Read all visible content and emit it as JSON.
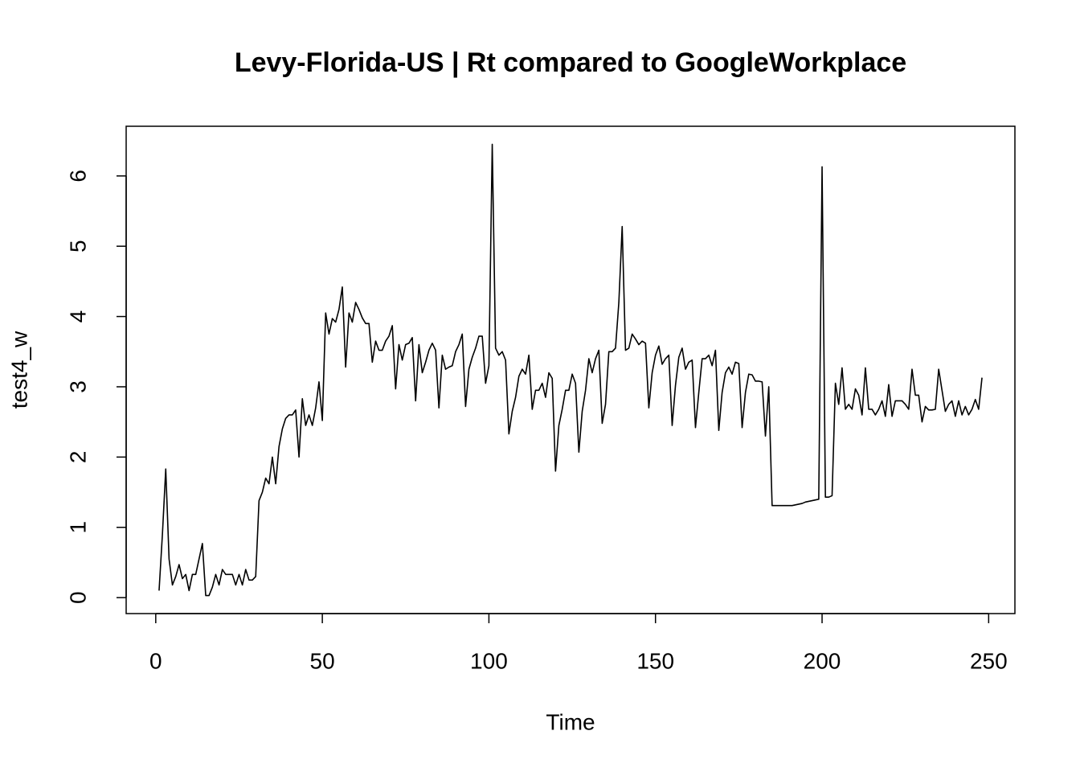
{
  "chart_data": {
    "type": "line",
    "title": "Levy-Florida-US | Rt compared to GoogleWorkplace",
    "x_label": "Time",
    "y_label": "test4_w",
    "color": "#000000",
    "x": [
      1,
      2,
      3,
      4,
      5,
      6,
      7,
      8,
      9,
      10,
      11,
      12,
      13,
      14,
      15,
      16,
      17,
      18,
      19,
      20,
      21,
      22,
      23,
      24,
      25,
      26,
      27,
      28,
      29,
      30,
      31,
      32,
      33,
      34,
      35,
      36,
      37,
      38,
      39,
      40,
      41,
      42,
      43,
      44,
      45,
      46,
      47,
      48,
      49,
      50,
      51,
      52,
      53,
      54,
      55,
      56,
      57,
      58,
      59,
      60,
      61,
      62,
      63,
      64,
      65,
      66,
      67,
      68,
      69,
      70,
      71,
      72,
      73,
      74,
      75,
      76,
      77,
      78,
      79,
      80,
      81,
      82,
      83,
      84,
      85,
      86,
      87,
      88,
      89,
      90,
      91,
      92,
      93,
      94,
      95,
      96,
      97,
      98,
      99,
      100,
      101,
      102,
      103,
      104,
      105,
      106,
      107,
      108,
      109,
      110,
      111,
      112,
      113,
      114,
      115,
      116,
      117,
      118,
      119,
      120,
      121,
      122,
      123,
      124,
      125,
      126,
      127,
      128,
      129,
      130,
      131,
      132,
      133,
      134,
      135,
      136,
      137,
      138,
      139,
      140,
      141,
      142,
      143,
      144,
      145,
      146,
      147,
      148,
      149,
      150,
      151,
      152,
      153,
      154,
      155,
      156,
      157,
      158,
      159,
      160,
      161,
      162,
      163,
      164,
      165,
      166,
      167,
      168,
      169,
      170,
      171,
      172,
      173,
      174,
      175,
      176,
      177,
      178,
      179,
      180,
      181,
      182,
      183,
      184,
      185,
      186,
      187,
      188,
      189,
      190,
      191,
      192,
      193,
      194,
      195,
      196,
      197,
      198,
      199,
      200,
      201,
      202,
      203,
      204,
      205,
      206,
      207,
      208,
      209,
      210,
      211,
      212,
      213,
      214,
      215,
      216,
      217,
      218,
      219,
      220,
      221,
      222,
      223,
      224,
      225,
      226,
      227,
      228,
      229,
      230,
      231,
      232,
      233,
      234,
      235,
      236,
      237,
      238,
      239,
      240,
      241,
      242,
      243,
      244,
      245,
      246,
      247,
      248
    ],
    "values": [
      0.1,
      0.9,
      1.83,
      0.55,
      0.18,
      0.3,
      0.47,
      0.27,
      0.33,
      0.1,
      0.33,
      0.33,
      0.55,
      0.77,
      0.03,
      0.03,
      0.15,
      0.33,
      0.18,
      0.4,
      0.33,
      0.33,
      0.33,
      0.18,
      0.33,
      0.18,
      0.4,
      0.25,
      0.25,
      0.3,
      1.38,
      1.5,
      1.7,
      1.62,
      2.0,
      1.62,
      2.15,
      2.4,
      2.55,
      2.6,
      2.6,
      2.67,
      2.0,
      2.83,
      2.45,
      2.6,
      2.45,
      2.7,
      3.07,
      2.52,
      4.05,
      3.75,
      3.97,
      3.92,
      4.1,
      4.42,
      3.28,
      4.05,
      3.92,
      4.2,
      4.1,
      3.98,
      3.9,
      3.9,
      3.35,
      3.65,
      3.52,
      3.52,
      3.65,
      3.72,
      3.87,
      2.97,
      3.6,
      3.38,
      3.6,
      3.62,
      3.7,
      2.8,
      3.6,
      3.2,
      3.35,
      3.52,
      3.62,
      3.52,
      2.7,
      3.45,
      3.25,
      3.28,
      3.3,
      3.5,
      3.6,
      3.75,
      2.72,
      3.25,
      3.42,
      3.55,
      3.72,
      3.72,
      3.05,
      3.3,
      6.45,
      3.55,
      3.45,
      3.5,
      3.38,
      2.33,
      2.65,
      2.85,
      3.15,
      3.25,
      3.18,
      3.45,
      2.68,
      2.95,
      2.95,
      3.05,
      2.85,
      3.2,
      3.12,
      1.8,
      2.45,
      2.68,
      2.95,
      2.95,
      3.18,
      3.05,
      2.07,
      2.65,
      2.95,
      3.4,
      3.2,
      3.4,
      3.52,
      2.48,
      2.75,
      3.5,
      3.5,
      3.55,
      4.2,
      5.28,
      3.52,
      3.55,
      3.75,
      3.68,
      3.6,
      3.65,
      3.62,
      2.7,
      3.2,
      3.45,
      3.58,
      3.32,
      3.4,
      3.45,
      2.45,
      3.02,
      3.42,
      3.55,
      3.25,
      3.35,
      3.38,
      2.42,
      2.92,
      3.4,
      3.4,
      3.45,
      3.3,
      3.52,
      2.38,
      2.92,
      3.2,
      3.28,
      3.18,
      3.35,
      3.33,
      2.42,
      2.92,
      3.18,
      3.17,
      3.08,
      3.08,
      3.07,
      2.3,
      3.0,
      1.31,
      1.31,
      1.31,
      1.31,
      1.31,
      1.31,
      1.31,
      1.32,
      1.33,
      1.34,
      1.36,
      1.37,
      1.38,
      1.39,
      1.4,
      6.13,
      1.43,
      1.43,
      1.45,
      3.05,
      2.75,
      3.27,
      2.68,
      2.75,
      2.68,
      2.97,
      2.88,
      2.6,
      3.27,
      2.68,
      2.68,
      2.6,
      2.68,
      2.8,
      2.58,
      3.03,
      2.58,
      2.8,
      2.8,
      2.8,
      2.75,
      2.68,
      3.25,
      2.88,
      2.88,
      2.5,
      2.72,
      2.67,
      2.67,
      2.68,
      3.25,
      2.95,
      2.65,
      2.75,
      2.8,
      2.58,
      2.8,
      2.6,
      2.72,
      2.6,
      2.68,
      2.82,
      2.68,
      3.13
    ],
    "xlim": [
      -8.88,
      257.88
    ],
    "ylim": [
      -0.227,
      6.707
    ],
    "xticks": [
      0,
      50,
      100,
      150,
      200,
      250
    ],
    "yticks": [
      0,
      1,
      2,
      3,
      4,
      5,
      6
    ]
  }
}
